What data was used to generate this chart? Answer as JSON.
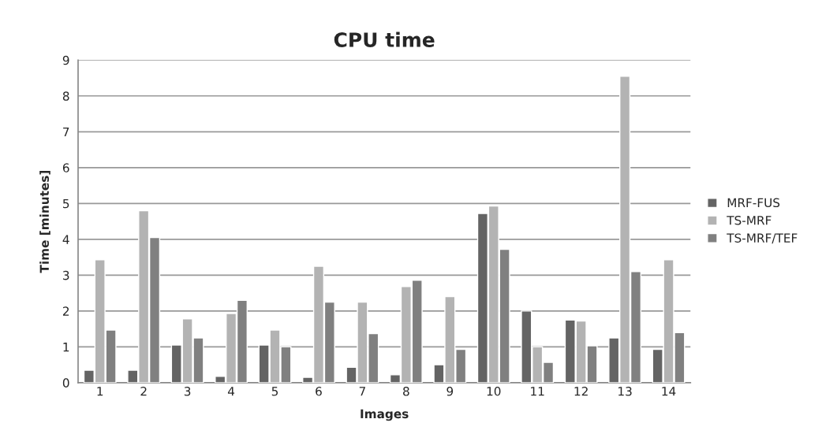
{
  "chart_data": {
    "type": "bar",
    "title": "CPU time",
    "xlabel": "Images",
    "ylabel": "Time [minutes]",
    "categories": [
      "1",
      "2",
      "3",
      "4",
      "5",
      "6",
      "7",
      "8",
      "9",
      "10",
      "11",
      "12",
      "13",
      "14"
    ],
    "series": [
      {
        "name": "MRF-FUS",
        "color": "#646464",
        "values": [
          0.35,
          0.35,
          1.05,
          0.18,
          1.05,
          0.15,
          0.43,
          0.22,
          0.5,
          4.72,
          2.0,
          1.75,
          1.25,
          0.93
        ]
      },
      {
        "name": "TS-MRF",
        "color": "#b3b3b3",
        "values": [
          3.43,
          4.8,
          1.78,
          1.93,
          1.47,
          3.25,
          2.25,
          2.68,
          2.4,
          4.93,
          1.0,
          1.72,
          8.55,
          3.43
        ]
      },
      {
        "name": "TS-MRF/TEF",
        "color": "#808080",
        "values": [
          1.47,
          4.05,
          1.25,
          2.3,
          1.0,
          2.25,
          1.37,
          2.86,
          0.93,
          3.72,
          0.57,
          1.03,
          3.1,
          1.4
        ]
      }
    ],
    "ylim": [
      0,
      9
    ],
    "yticks": [
      0,
      1,
      2,
      3,
      4,
      5,
      6,
      7,
      8,
      9
    ],
    "grid": "y",
    "legend": "right"
  }
}
